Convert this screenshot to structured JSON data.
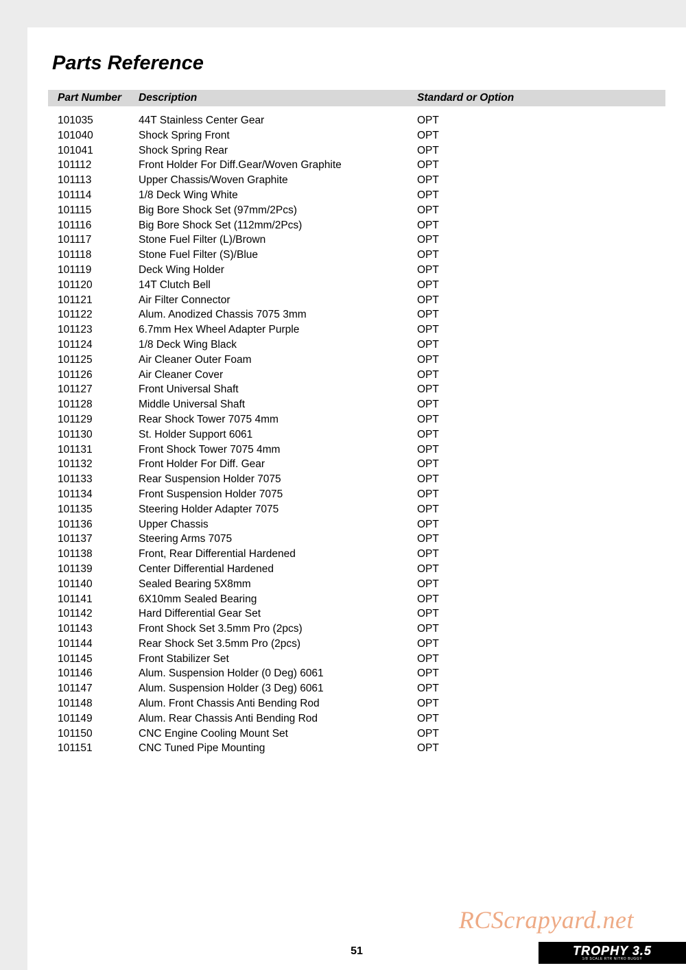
{
  "title": "Parts Reference",
  "columns": {
    "part": "Part Number",
    "desc": "Description",
    "opt": "Standard or Option"
  },
  "rows": [
    {
      "part": "101035",
      "desc": "44T Stainless Center Gear",
      "opt": "OPT"
    },
    {
      "part": "101040",
      "desc": "Shock Spring Front",
      "opt": "OPT"
    },
    {
      "part": "101041",
      "desc": "Shock Spring Rear",
      "opt": "OPT"
    },
    {
      "part": "101112",
      "desc": "Front Holder For Diff.Gear/Woven Graphite",
      "opt": "OPT"
    },
    {
      "part": "101113",
      "desc": "Upper Chassis/Woven Graphite",
      "opt": "OPT"
    },
    {
      "part": "101114",
      "desc": "1/8 Deck Wing White",
      "opt": "OPT"
    },
    {
      "part": "101115",
      "desc": "Big Bore Shock Set (97mm/2Pcs)",
      "opt": "OPT"
    },
    {
      "part": "101116",
      "desc": "Big Bore Shock Set (112mm/2Pcs)",
      "opt": "OPT"
    },
    {
      "part": "101117",
      "desc": "Stone Fuel Filter (L)/Brown",
      "opt": "OPT"
    },
    {
      "part": "101118",
      "desc": "Stone Fuel Filter (S)/Blue",
      "opt": "OPT"
    },
    {
      "part": "101119",
      "desc": "Deck Wing Holder",
      "opt": "OPT"
    },
    {
      "part": "101120",
      "desc": "14T Clutch Bell",
      "opt": "OPT"
    },
    {
      "part": "101121",
      "desc": "Air Filter Connector",
      "opt": "OPT"
    },
    {
      "part": "101122",
      "desc": "Alum. Anodized Chassis 7075 3mm",
      "opt": "OPT"
    },
    {
      "part": "101123",
      "desc": "6.7mm Hex Wheel Adapter Purple",
      "opt": "OPT"
    },
    {
      "part": "101124",
      "desc": "1/8 Deck Wing Black",
      "opt": "OPT"
    },
    {
      "part": "101125",
      "desc": "Air Cleaner Outer Foam",
      "opt": "OPT"
    },
    {
      "part": "101126",
      "desc": "Air Cleaner Cover",
      "opt": "OPT"
    },
    {
      "part": "101127",
      "desc": "Front Universal Shaft",
      "opt": "OPT"
    },
    {
      "part": "101128",
      "desc": "Middle Universal Shaft",
      "opt": "OPT"
    },
    {
      "part": "101129",
      "desc": "Rear Shock Tower 7075 4mm",
      "opt": "OPT"
    },
    {
      "part": "101130",
      "desc": "St. Holder Support 6061",
      "opt": "OPT"
    },
    {
      "part": "101131",
      "desc": "Front Shock Tower 7075 4mm",
      "opt": "OPT"
    },
    {
      "part": "101132",
      "desc": "Front Holder For Diff. Gear",
      "opt": "OPT"
    },
    {
      "part": "101133",
      "desc": "Rear Suspension Holder 7075",
      "opt": "OPT"
    },
    {
      "part": "101134",
      "desc": "Front Suspension Holder 7075",
      "opt": "OPT"
    },
    {
      "part": "101135",
      "desc": "Steering Holder Adapter 7075",
      "opt": "OPT"
    },
    {
      "part": "101136",
      "desc": "Upper Chassis",
      "opt": "OPT"
    },
    {
      "part": "101137",
      "desc": "Steering Arms 7075",
      "opt": "OPT"
    },
    {
      "part": "101138",
      "desc": "Front, Rear Differential Hardened",
      "opt": "OPT"
    },
    {
      "part": "101139",
      "desc": "Center Differential Hardened",
      "opt": "OPT"
    },
    {
      "part": "101140",
      "desc": "Sealed Bearing 5X8mm",
      "opt": "OPT"
    },
    {
      "part": "101141",
      "desc": "6X10mm Sealed Bearing",
      "opt": "OPT"
    },
    {
      "part": "101142",
      "desc": "Hard Differential Gear Set",
      "opt": "OPT"
    },
    {
      "part": "101143",
      "desc": "Front Shock Set 3.5mm Pro (2pcs)",
      "opt": "OPT"
    },
    {
      "part": "101144",
      "desc": "Rear Shock Set 3.5mm Pro (2pcs)",
      "opt": "OPT"
    },
    {
      "part": "101145",
      "desc": "Front Stabilizer Set",
      "opt": "OPT"
    },
    {
      "part": "101146",
      "desc": "Alum. Suspension Holder (0 Deg) 6061",
      "opt": "OPT"
    },
    {
      "part": "101147",
      "desc": "Alum. Suspension Holder (3 Deg) 6061",
      "opt": "OPT"
    },
    {
      "part": "101148",
      "desc": "Alum. Front Chassis Anti Bending Rod",
      "opt": "OPT"
    },
    {
      "part": "101149",
      "desc": "Alum. Rear Chassis Anti Bending Rod",
      "opt": "OPT"
    },
    {
      "part": "101150",
      "desc": "CNC Engine Cooling Mount Set",
      "opt": "OPT"
    },
    {
      "part": "101151",
      "desc": "CNC Tuned Pipe Mounting",
      "opt": "OPT"
    }
  ],
  "page_number": "51",
  "watermark": "RCScrapyard.net",
  "logo": {
    "main": "TROPHY 3.5",
    "sub": "1/8 SCALE RTR NITRO BUGGY"
  },
  "colors": {
    "page_bg": "#ececec",
    "content_bg": "#ffffff",
    "header_bg": "#d8d8d8",
    "text": "#000000",
    "watermark": "#ec9c70",
    "logo_bg": "#000000",
    "logo_text": "#ffffff"
  }
}
